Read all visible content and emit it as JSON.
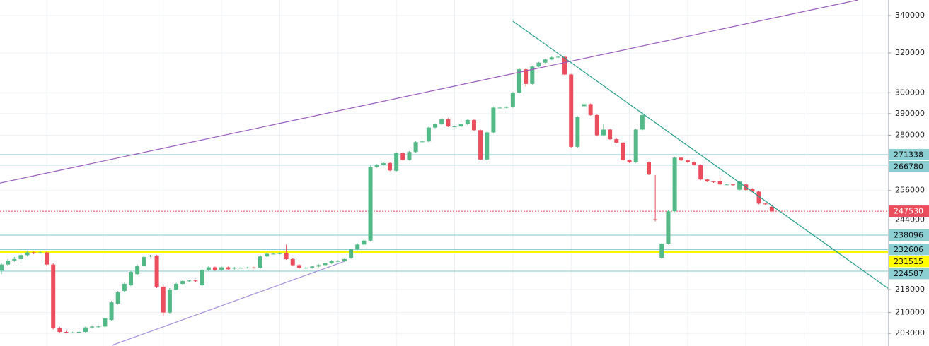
{
  "chart_data": {
    "type": "candlestick",
    "log_scale": true,
    "grid": true,
    "grid_color": "#eef1f4",
    "up_color": "#53b987",
    "down_color": "#eb4d5c",
    "ylim": [
      198900,
      348700
    ],
    "yticks": [
      203000,
      210000,
      218000,
      244000,
      256000,
      280000,
      290000,
      300000,
      320000,
      340000
    ],
    "open": [
      224800,
      227000,
      228500,
      229000,
      230500,
      231500,
      231300,
      231500,
      227000,
      204800,
      203500,
      203300,
      203300,
      203500,
      205000,
      205300,
      205300,
      207500,
      213000,
      217500,
      219500,
      223500,
      226500,
      230000,
      230300,
      219000,
      210000,
      218000,
      220000,
      221000,
      221200,
      219500,
      225000,
      226000,
      225000,
      226000,
      225500,
      225800,
      225800,
      225900,
      225800,
      230000,
      231000,
      231000,
      231200,
      229000,
      226800,
      225800,
      225800,
      226300,
      226800,
      227500,
      228300,
      228300,
      229400,
      232600,
      234500,
      236000,
      266000,
      266800,
      267600,
      264300,
      272000,
      269000,
      272500,
      276900,
      277200,
      283500,
      285000,
      287500,
      284000,
      284000,
      285000,
      287000,
      282300,
      269200,
      281300,
      292800,
      292800,
      293000,
      300000,
      311600,
      304300,
      313000,
      315000,
      316600,
      317700,
      318000,
      309000,
      274800,
      293500,
      294500,
      289300,
      280000,
      282600,
      278200,
      276700,
      268900,
      268000,
      282600,
      268000,
      244300,
      229500,
      234800,
      247500,
      270000,
      268800,
      268000,
      266800,
      260600,
      259800,
      259800,
      258500,
      258500,
      256300,
      258500,
      256600,
      255500,
      250600,
      249300
    ],
    "high": [
      227500,
      229000,
      229800,
      231000,
      232000,
      231800,
      232000,
      231800,
      227500,
      205200,
      203800,
      203600,
      203800,
      205300,
      205600,
      205600,
      208400,
      214000,
      217500,
      220400,
      224700,
      227000,
      230200,
      230600,
      230600,
      219500,
      218500,
      220400,
      221400,
      221500,
      221500,
      225400,
      226400,
      226300,
      226300,
      226300,
      226100,
      226100,
      226200,
      226200,
      230400,
      231400,
      231300,
      231500,
      234500,
      229300,
      227100,
      226100,
      226600,
      227100,
      227800,
      228600,
      228600,
      229300,
      233000,
      234900,
      236400,
      266500,
      267200,
      268000,
      268000,
      272400,
      272400,
      272900,
      277300,
      277600,
      283900,
      285400,
      287900,
      287900,
      284300,
      285300,
      287300,
      287300,
      282600,
      281700,
      293200,
      293100,
      293400,
      300400,
      312000,
      312000,
      313400,
      315400,
      317000,
      318100,
      318600,
      318400,
      309300,
      288800,
      294900,
      294800,
      289600,
      285000,
      282900,
      278500,
      277000,
      269200,
      283000,
      291000,
      268300,
      262500,
      235100,
      247900,
      270400,
      270300,
      269100,
      268300,
      267100,
      260900,
      260100,
      261500,
      258800,
      258800,
      260000,
      258800,
      256900,
      255800,
      250900,
      249600
    ],
    "low": [
      223500,
      226500,
      228000,
      228500,
      230000,
      230800,
      231000,
      226500,
      204300,
      203000,
      203000,
      203000,
      203000,
      203200,
      204700,
      205000,
      205000,
      207200,
      212700,
      217000,
      219200,
      223200,
      226200,
      229700,
      218500,
      209000,
      209700,
      217700,
      219700,
      220700,
      220700,
      219200,
      224700,
      224700,
      224700,
      225000,
      225200,
      225500,
      225500,
      225500,
      225500,
      229700,
      230700,
      230700,
      228700,
      226500,
      225500,
      225500,
      225500,
      226000,
      226500,
      227200,
      228000,
      228000,
      229100,
      232300,
      234200,
      235700,
      265600,
      266400,
      264200,
      264000,
      268700,
      268700,
      272200,
      276600,
      276900,
      283200,
      284700,
      283700,
      283700,
      283700,
      284700,
      282000,
      268900,
      268900,
      281000,
      292500,
      292500,
      292700,
      299700,
      303000,
      304000,
      312700,
      314700,
      316300,
      317400,
      308700,
      274400,
      274400,
      293200,
      289000,
      279700,
      279700,
      277900,
      276400,
      268600,
      267700,
      267700,
      282300,
      262400,
      243500,
      229000,
      234500,
      247200,
      268500,
      267700,
      266500,
      260300,
      259500,
      259200,
      258200,
      258200,
      258000,
      256000,
      255900,
      255200,
      250300,
      250000,
      247200
    ],
    "close": [
      227000,
      228500,
      229000,
      230500,
      231500,
      231200,
      231500,
      227000,
      204800,
      203500,
      203300,
      203300,
      203500,
      205000,
      205300,
      205300,
      208000,
      213500,
      217000,
      220000,
      224300,
      226500,
      229800,
      230300,
      219000,
      210000,
      218000,
      220000,
      221000,
      221200,
      221000,
      225000,
      226000,
      225000,
      226000,
      225300,
      225800,
      225800,
      225900,
      225800,
      230000,
      231000,
      231000,
      231200,
      229000,
      226800,
      225800,
      225800,
      226300,
      226800,
      227500,
      228300,
      228300,
      229000,
      232600,
      234500,
      236000,
      266000,
      266800,
      267600,
      264500,
      272000,
      269000,
      272500,
      276900,
      277200,
      283500,
      285000,
      287500,
      284000,
      284000,
      285000,
      287000,
      282300,
      269200,
      281300,
      292800,
      292800,
      293100,
      300000,
      311600,
      304300,
      313000,
      315000,
      316600,
      317700,
      318000,
      309000,
      274800,
      288400,
      294500,
      289300,
      280000,
      282600,
      278200,
      276700,
      268900,
      268000,
      282600,
      289300,
      262700,
      244000,
      234800,
      247500,
      270000,
      268800,
      268000,
      266800,
      260600,
      259800,
      259500,
      258500,
      258500,
      258300,
      259700,
      256200,
      255500,
      250600,
      250300,
      247530
    ],
    "price_lines": [
      {
        "value": 271338,
        "color": "#7fc8cc",
        "label_color": "#8ccfd3",
        "text_color": "#111111",
        "style": "solid"
      },
      {
        "value": 266780,
        "color": "#7fc8cc",
        "label_color": "#8ccfd3",
        "text_color": "#111111",
        "style": "solid"
      },
      {
        "value": 247530,
        "color": "#eb4d5c",
        "label_color": "#eb4d5c",
        "text_color": "#ffffff",
        "style": "dotted"
      },
      {
        "value": 238096,
        "color": "#7fc8cc",
        "label_color": "#8ccfd3",
        "text_color": "#111111",
        "style": "solid"
      },
      {
        "value": 232606,
        "color": "#7fc8cc",
        "label_color": "#8ccfd3",
        "text_color": "#111111",
        "style": "solid"
      },
      {
        "value": 231515,
        "color": "#f7f700",
        "label_color": "#ffff00",
        "text_color": "#111111",
        "style": "thick"
      },
      {
        "value": 224587,
        "color": "#7fc8cc",
        "label_color": "#8ccfd3",
        "text_color": "#111111",
        "style": "solid"
      }
    ],
    "drawings": [
      {
        "color": "#9c5bbd",
        "x": [
          -0.22,
          132.3
        ],
        "y": [
          259100,
          348700
        ]
      },
      {
        "color": "#a58fdc",
        "x": [
          17.05,
          53.0
        ],
        "y": [
          199100,
          228200
        ]
      },
      {
        "color": "#26a08c",
        "x": [
          79.0,
          137.2
        ],
        "y": [
          336900,
          218000
        ]
      }
    ]
  }
}
